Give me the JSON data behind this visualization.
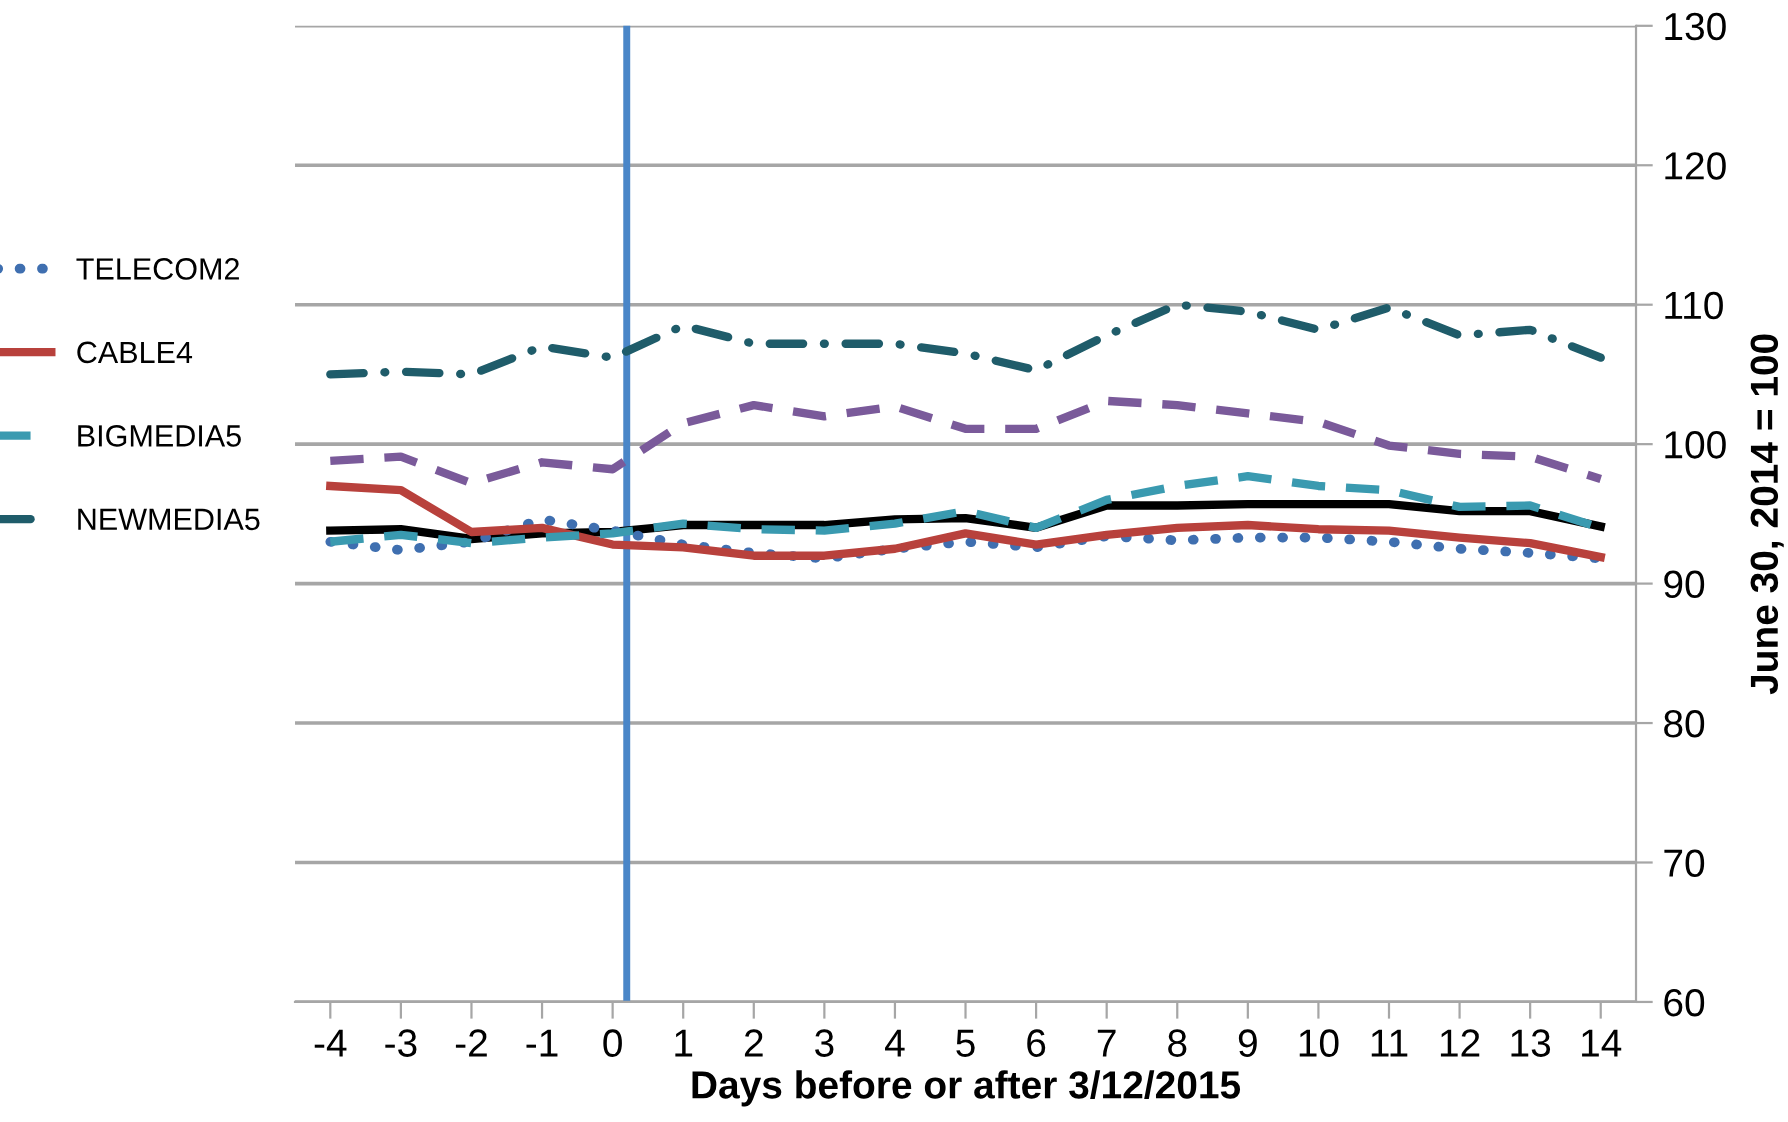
{
  "chart_data": {
    "type": "line",
    "xlabel": "Days before or after 3/12/2015",
    "ylabel": "June 30, 2014 = 100",
    "x": [
      -4,
      -3,
      -2,
      -1,
      0,
      1,
      2,
      3,
      4,
      5,
      6,
      7,
      8,
      9,
      10,
      11,
      12,
      13,
      14
    ],
    "xlim": [
      -4.5,
      14.5
    ],
    "xticks": [
      -4,
      -3,
      -2,
      -1,
      0,
      1,
      2,
      3,
      4,
      5,
      6,
      7,
      8,
      9,
      10,
      11,
      12,
      13,
      14
    ],
    "ylim": [
      60,
      130
    ],
    "yticks": [
      60,
      70,
      80,
      90,
      100,
      110,
      120,
      130
    ],
    "grid": "y",
    "legend": "left",
    "ref_lines": [
      {
        "axis": "x",
        "value": 0.2,
        "color": "#4a86c8"
      }
    ],
    "series": [
      {
        "color": "#000000",
        "line_style": "solid",
        "values": [
          93.8,
          93.9,
          93.2,
          93.6,
          93.7,
          94.2,
          94.2,
          94.2,
          94.6,
          94.7,
          94.0,
          95.6,
          95.6,
          95.7,
          95.7,
          95.7,
          95.2,
          95.2,
          94.1
        ]
      },
      {
        "color": "#7a5a9a",
        "line_style": "dashed",
        "values": [
          98.8,
          99.1,
          97.2,
          98.7,
          98.2,
          101.5,
          102.8,
          102.0,
          102.7,
          101.1,
          101.1,
          103.1,
          102.8,
          102.2,
          101.6,
          99.9,
          99.3,
          99.1,
          97.5
        ]
      },
      {
        "name": "TELECOM2",
        "color": "#3f6fb0",
        "line_style": "dotted",
        "values": [
          93.0,
          92.4,
          93.0,
          94.6,
          93.8,
          92.8,
          92.2,
          91.8,
          92.5,
          93.0,
          92.6,
          93.4,
          93.1,
          93.3,
          93.3,
          93.0,
          92.5,
          92.2,
          91.8
        ]
      },
      {
        "name": "CABLE4",
        "color": "#b8413c",
        "line_style": "solid",
        "values": [
          97.0,
          96.7,
          93.7,
          94.0,
          92.8,
          92.6,
          92.0,
          92.0,
          92.5,
          93.6,
          92.8,
          93.5,
          94.0,
          94.2,
          93.9,
          93.8,
          93.3,
          92.9,
          91.9
        ]
      },
      {
        "name": "BIGMEDIA5",
        "color": "#3a9ab0",
        "line_style": "dashed",
        "values": [
          93.0,
          93.5,
          92.9,
          93.3,
          93.6,
          94.3,
          93.9,
          93.8,
          94.3,
          95.2,
          94.0,
          96.0,
          97.0,
          97.7,
          97.0,
          96.7,
          95.5,
          95.6,
          94.0
        ]
      },
      {
        "name": "NEWMEDIA5",
        "color": "#1f5c6a",
        "line_style": "dashdot",
        "values": [
          105.0,
          105.2,
          105.0,
          107.0,
          106.2,
          108.5,
          107.2,
          107.2,
          107.2,
          106.5,
          105.3,
          107.8,
          110.0,
          109.5,
          108.2,
          109.8,
          107.8,
          108.2,
          106.2
        ]
      }
    ]
  }
}
